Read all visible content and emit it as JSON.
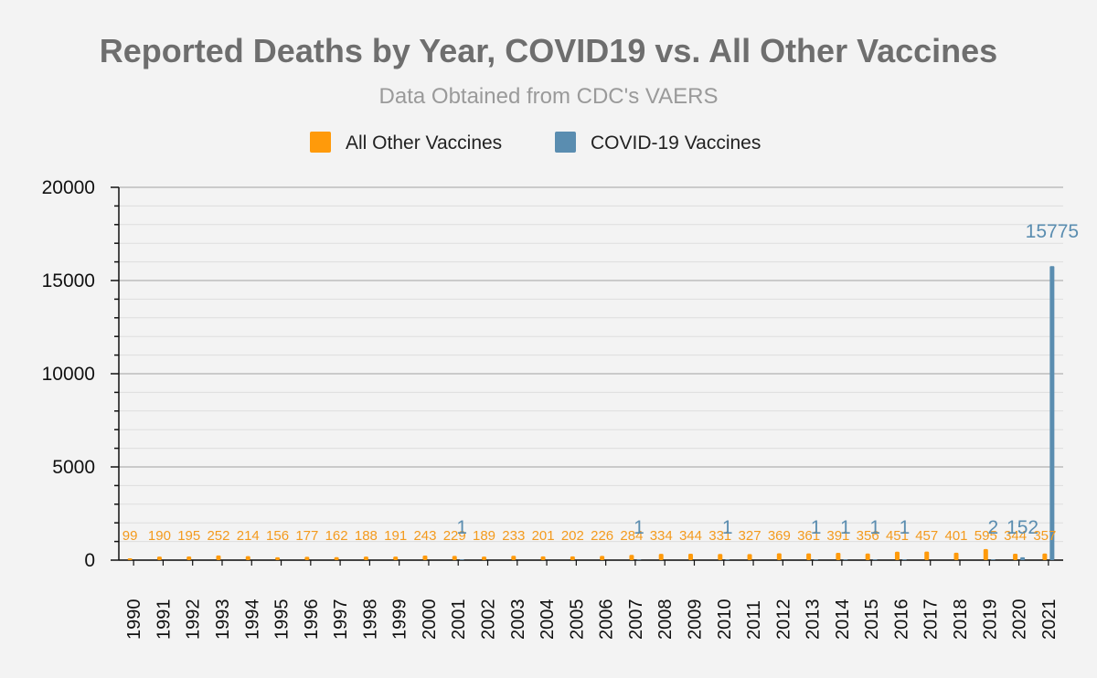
{
  "chart_data": {
    "type": "bar",
    "title": "Reported Deaths by Year, COVID19 vs. All Other Vaccines",
    "subtitle": "Data Obtained from CDC's VAERS",
    "categories": [
      "1990",
      "1991",
      "1992",
      "1993",
      "1994",
      "1995",
      "1996",
      "1997",
      "1998",
      "1999",
      "2000",
      "2001",
      "2002",
      "2003",
      "2004",
      "2005",
      "2006",
      "2007",
      "2008",
      "2009",
      "2010",
      "2011",
      "2012",
      "2013",
      "2014",
      "2015",
      "2016",
      "2017",
      "2018",
      "2019",
      "2020",
      "2021"
    ],
    "series": [
      {
        "name": "All Other Vaccines",
        "color": "#ff9a0a",
        "values": [
          99,
          190,
          195,
          252,
          214,
          156,
          177,
          162,
          188,
          191,
          243,
          229,
          189,
          233,
          201,
          202,
          226,
          284,
          334,
          344,
          331,
          327,
          369,
          361,
          391,
          356,
          451,
          457,
          401,
          595,
          344,
          357
        ],
        "data_labels": [
          "99",
          "190",
          "195",
          "252",
          "214",
          "156",
          "177",
          "162",
          "188",
          "191",
          "243",
          "229",
          "189",
          "233",
          "201",
          "202",
          "226",
          "284",
          "334",
          "344",
          "331",
          "327",
          "369",
          "361",
          "391",
          "356",
          "451",
          "457",
          "401",
          "595",
          "344",
          "357"
        ]
      },
      {
        "name": "COVID-19 Vaccines",
        "color": "#5a8db0",
        "values": [
          null,
          null,
          null,
          null,
          null,
          null,
          null,
          null,
          null,
          null,
          null,
          1,
          null,
          null,
          null,
          null,
          null,
          1,
          null,
          null,
          1,
          null,
          null,
          1,
          1,
          1,
          1,
          null,
          null,
          2,
          152,
          15775
        ],
        "data_labels": [
          null,
          null,
          null,
          null,
          null,
          null,
          null,
          null,
          null,
          null,
          null,
          "1",
          null,
          null,
          null,
          null,
          null,
          "1",
          null,
          null,
          "1",
          null,
          null,
          "1",
          "1",
          "1",
          "1",
          null,
          null,
          "2",
          "152",
          "15775"
        ]
      }
    ],
    "ylim": [
      0,
      20000
    ],
    "yticks": [
      0,
      5000,
      10000,
      15000,
      20000
    ],
    "grid": true,
    "legend_position": "top-center",
    "xlabel": "",
    "ylabel": ""
  }
}
